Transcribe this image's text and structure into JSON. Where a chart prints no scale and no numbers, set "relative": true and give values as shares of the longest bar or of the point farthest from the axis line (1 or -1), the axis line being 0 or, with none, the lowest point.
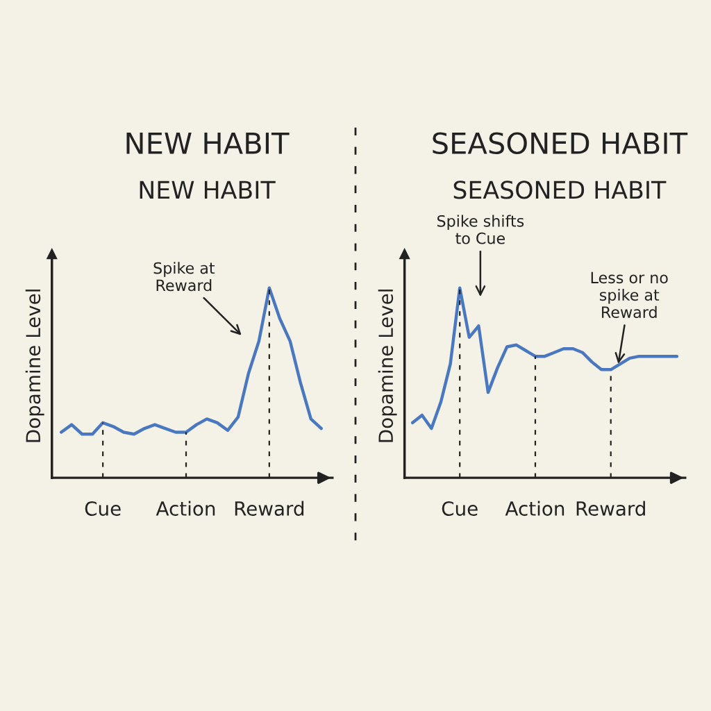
{
  "chart_data": [
    {
      "type": "line",
      "title": "NEW HABIT",
      "subtitle": "NEW HABIT",
      "ylabel": "Dopamine Level",
      "relative": true,
      "grid": false,
      "legend": false,
      "line_style": "solid",
      "marker": "none",
      "categories": [
        null,
        null,
        null,
        null,
        "Cue",
        null,
        null,
        null,
        null,
        null,
        null,
        null,
        "Action",
        null,
        null,
        null,
        null,
        null,
        null,
        null,
        "Reward",
        null,
        null,
        null,
        null,
        null
      ],
      "series": [
        {
          "color": "#4a78c0",
          "values": [
            0.24,
            0.28,
            0.23,
            0.23,
            0.29,
            0.27,
            0.24,
            0.23,
            0.26,
            0.28,
            0.26,
            0.24,
            0.24,
            0.28,
            0.31,
            0.29,
            0.25,
            0.32,
            0.55,
            0.72,
            1.0,
            0.84,
            0.72,
            0.5,
            0.31,
            0.26
          ]
        }
      ],
      "ref_lines": [
        {
          "axis": "x",
          "value": "Cue",
          "line_style": "dashed",
          "color": "#222222"
        },
        {
          "axis": "x",
          "value": "Action",
          "line_style": "dashed",
          "color": "#222222"
        },
        {
          "axis": "x",
          "value": "Reward",
          "line_style": "dashed",
          "color": "#222222"
        }
      ],
      "annotations": [
        "Spike at\nReward"
      ]
    },
    {
      "type": "line",
      "title": "SEASONED HABIT",
      "subtitle": "SEASONED HABIT",
      "ylabel": "Dopamine Level",
      "relative": true,
      "grid": false,
      "legend": false,
      "line_style": "solid",
      "marker": "none",
      "categories": [
        null,
        null,
        null,
        null,
        null,
        "Cue",
        null,
        null,
        null,
        null,
        null,
        null,
        null,
        "Action",
        null,
        null,
        null,
        null,
        null,
        null,
        null,
        "Reward",
        null,
        null,
        null,
        null,
        null,
        null,
        null
      ],
      "series": [
        {
          "color": "#4a78c0",
          "values": [
            0.29,
            0.33,
            0.26,
            0.4,
            0.6,
            1.0,
            0.74,
            0.8,
            0.45,
            0.58,
            0.69,
            0.7,
            0.67,
            0.64,
            0.64,
            0.66,
            0.68,
            0.68,
            0.66,
            0.61,
            0.57,
            0.57,
            0.6,
            0.63,
            0.64,
            0.64,
            0.64,
            0.64,
            0.64
          ]
        }
      ],
      "ref_lines": [
        {
          "axis": "x",
          "value": "Cue",
          "line_style": "dashed",
          "color": "#222222"
        },
        {
          "axis": "x",
          "value": "Action",
          "line_style": "dashed",
          "color": "#222222"
        },
        {
          "axis": "x",
          "value": "Reward",
          "line_style": "dashed",
          "color": "#222222"
        }
      ],
      "annotations": [
        "Spike shifts\nto Cue",
        "Less or no\nspike at\nReward"
      ]
    }
  ]
}
